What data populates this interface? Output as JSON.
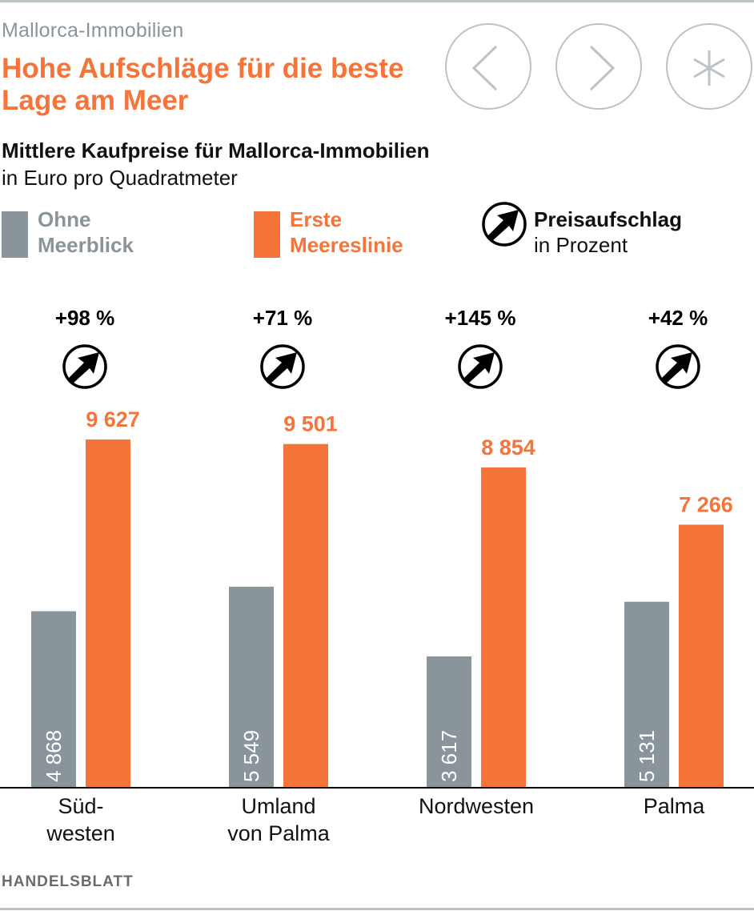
{
  "header": {
    "kicker": "Mallorca-Immobilien",
    "headline": "Hohe Aufschläge für die beste Lage am Meer"
  },
  "nav": {
    "prev_icon": "chevron-left-icon",
    "next_icon": "chevron-right-icon",
    "share_icon": "asterisk-icon"
  },
  "legend": {
    "series1_label_line1": "Ohne",
    "series1_label_line2": "Meerblick",
    "series2_label_line1": "Erste",
    "series2_label_line2": "Meereslinie",
    "markup_title": "Preisaufschlag",
    "markup_sub": "in Prozent",
    "markup_icon": "arrow-up-right-circle-icon"
  },
  "colors": {
    "gray": "#8a959b",
    "orange": "#f5743a",
    "text": "#111111",
    "muted": "#8a959b",
    "rule": "#bcc3c6"
  },
  "source": "HANDELSBLATT",
  "chart_data": {
    "type": "bar",
    "title": "Mittlere Kaufpreise für Mallorca-Immobilien",
    "subtitle": "in Euro pro Quadratmeter",
    "xlabel": "",
    "ylabel": "",
    "ylim": [
      0,
      9627
    ],
    "grid": false,
    "legend_position": "top",
    "categories": [
      [
        "Süd-",
        "westen"
      ],
      [
        "Umland",
        "von Palma"
      ],
      [
        "Nordwesten"
      ],
      [
        "Palma"
      ]
    ],
    "series": [
      {
        "name": "Ohne Meerblick",
        "color": "#8a959b",
        "values": [
          4868,
          5549,
          3617,
          5131
        ],
        "labels": [
          "4 868",
          "5 549",
          "3 617",
          "5 131"
        ]
      },
      {
        "name": "Erste Meereslinie",
        "color": "#f5743a",
        "values": [
          9627,
          9501,
          8854,
          7266
        ],
        "labels": [
          "9 627",
          "9 501",
          "8 854",
          "7 266"
        ]
      }
    ],
    "annotations": {
      "name": "Preisaufschlag in Prozent",
      "values": [
        98,
        71,
        145,
        42
      ],
      "labels": [
        "+98 %",
        "+71 %",
        "+145 %",
        "+42 %"
      ]
    }
  }
}
